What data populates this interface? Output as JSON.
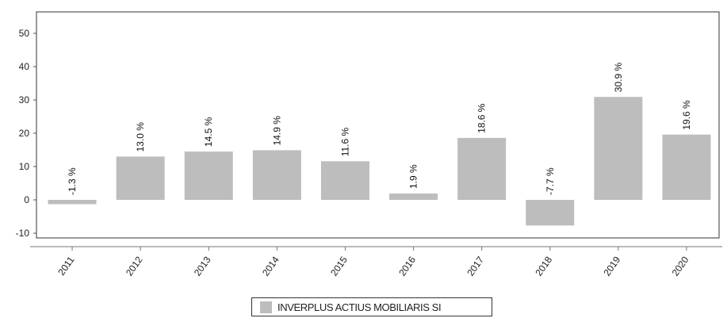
{
  "chart_data": {
    "type": "bar",
    "categories": [
      "2011",
      "2012",
      "2013",
      "2014",
      "2015",
      "2016",
      "2017",
      "2018",
      "2019",
      "2020"
    ],
    "series": [
      {
        "name": "INVERPLUS ACTIUS MOBILIARIS SI",
        "values": [
          -1.3,
          13.0,
          14.5,
          14.9,
          11.6,
          1.9,
          18.6,
          -7.7,
          30.9,
          19.6
        ]
      }
    ],
    "data_labels": [
      "-1.3 %",
      "13.0 %",
      "14.5 %",
      "14.9 %",
      "11.6 %",
      "1.9 %",
      "18.6 %",
      "-7.7 %",
      "30.9 %",
      "19.6 %"
    ],
    "y_ticks": [
      50,
      40,
      30,
      20,
      10,
      0,
      -10
    ],
    "ylim": [
      -11,
      55
    ],
    "grid": false,
    "legend_position": "bottom-center",
    "bar_color": "#bdbdbd"
  },
  "legend": {
    "label": "INVERPLUS ACTIUS MOBILIARIS SI"
  }
}
